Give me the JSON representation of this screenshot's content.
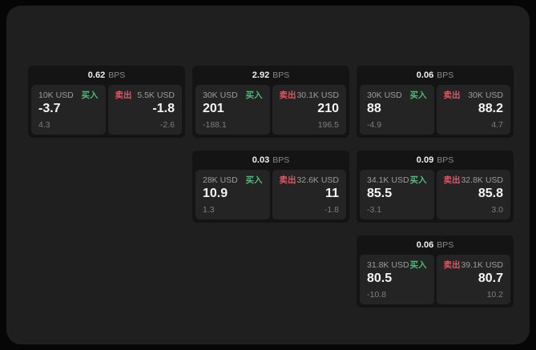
{
  "colors": {
    "buy": "#4cbc7c",
    "sell": "#d95a66",
    "window_bg": "#1f1f1f",
    "card_bg": "#141414",
    "panel_bg": "#242424"
  },
  "cards": [
    {
      "bps": "0.62",
      "bps_unit": "BPS",
      "buy": {
        "amount": "10K USD",
        "side": "买入",
        "price": "-3.7",
        "delta": "4.3"
      },
      "sell": {
        "amount": "5.5K USD",
        "side": "卖出",
        "price": "-1.8",
        "delta": "-2.6"
      }
    },
    {
      "bps": "2.92",
      "bps_unit": "BPS",
      "buy": {
        "amount": "30K USD",
        "side": "买入",
        "price": "201",
        "delta": "-188.1"
      },
      "sell": {
        "amount": "30.1K USD",
        "side": "卖出",
        "price": "210",
        "delta": "196.5"
      }
    },
    {
      "bps": "0.06",
      "bps_unit": "BPS",
      "buy": {
        "amount": "30K USD",
        "side": "买入",
        "price": "88",
        "delta": "-4.9"
      },
      "sell": {
        "amount": "30K USD",
        "side": "卖出",
        "price": "88.2",
        "delta": "4.7"
      }
    },
    {
      "bps": "0.03",
      "bps_unit": "BPS",
      "buy": {
        "amount": "28K USD",
        "side": "买入",
        "price": "10.9",
        "delta": "1.3"
      },
      "sell": {
        "amount": "32.6K USD",
        "side": "卖出",
        "price": "11",
        "delta": "-1.8"
      }
    },
    {
      "bps": "0.09",
      "bps_unit": "BPS",
      "buy": {
        "amount": "34.1K USD",
        "side": "买入",
        "price": "85.5",
        "delta": "-3.1"
      },
      "sell": {
        "amount": "32.8K USD",
        "side": "卖出",
        "price": "85.8",
        "delta": "3.0"
      }
    },
    {
      "bps": "0.06",
      "bps_unit": "BPS",
      "buy": {
        "amount": "31.8K USD",
        "side": "买入",
        "price": "80.5",
        "delta": "-10.8"
      },
      "sell": {
        "amount": "39.1K USD",
        "side": "卖出",
        "price": "80.7",
        "delta": "10.2"
      }
    }
  ]
}
